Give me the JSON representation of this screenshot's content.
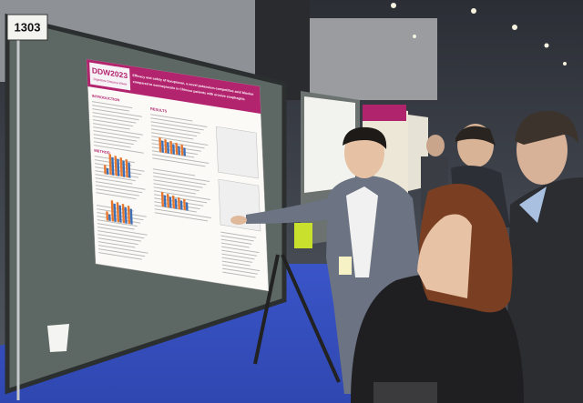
{
  "booth_number": "1303",
  "poster": {
    "logo": "DDW2023",
    "logo_subtitle": "Digestive Disease Week",
    "title_lines": [
      "Efficacy and safety of fexuprazan, a novel potassium-competitive acid blocker",
      "compared to esomeprazole in Chinese patients with erosive esophagitis"
    ],
    "sections": [
      "INTRODUCTION",
      "RESULTS",
      "METHOD"
    ]
  }
}
